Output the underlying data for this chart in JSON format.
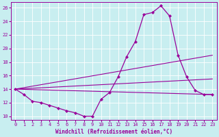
{
  "xlabel": "Windchill (Refroidissement éolien,°C)",
  "background_color": "#c8eef0",
  "line_color": "#990099",
  "grid_color": "#b0dde0",
  "xlim": [
    -0.5,
    23.5
  ],
  "ylim": [
    9.5,
    26.8
  ],
  "yticks": [
    10,
    12,
    14,
    16,
    18,
    20,
    22,
    24,
    26
  ],
  "xticks": [
    0,
    1,
    2,
    3,
    4,
    5,
    6,
    7,
    8,
    9,
    10,
    11,
    12,
    13,
    14,
    15,
    16,
    17,
    18,
    19,
    20,
    21,
    22,
    23
  ],
  "main_x": [
    0,
    1,
    2,
    3,
    4,
    5,
    6,
    7,
    8,
    9,
    10,
    11,
    12,
    13,
    14,
    15,
    16,
    17,
    18,
    19,
    20,
    21,
    22,
    23
  ],
  "main_y": [
    14.0,
    13.2,
    12.2,
    12.0,
    11.6,
    11.2,
    10.8,
    10.5,
    10.0,
    10.0,
    12.5,
    13.5,
    15.8,
    18.8,
    21.0,
    25.0,
    25.3,
    26.3,
    24.8,
    19.0,
    15.8,
    13.8,
    13.2,
    13.2
  ],
  "ref_lines": [
    {
      "x": [
        0,
        23
      ],
      "y": [
        14.0,
        19.0
      ]
    },
    {
      "x": [
        0,
        23
      ],
      "y": [
        14.0,
        15.5
      ]
    },
    {
      "x": [
        0,
        23
      ],
      "y": [
        14.0,
        13.2
      ]
    }
  ],
  "xlabel_fontsize": 5.5,
  "tick_fontsize": 5,
  "figsize": [
    3.2,
    2.0
  ],
  "dpi": 100
}
